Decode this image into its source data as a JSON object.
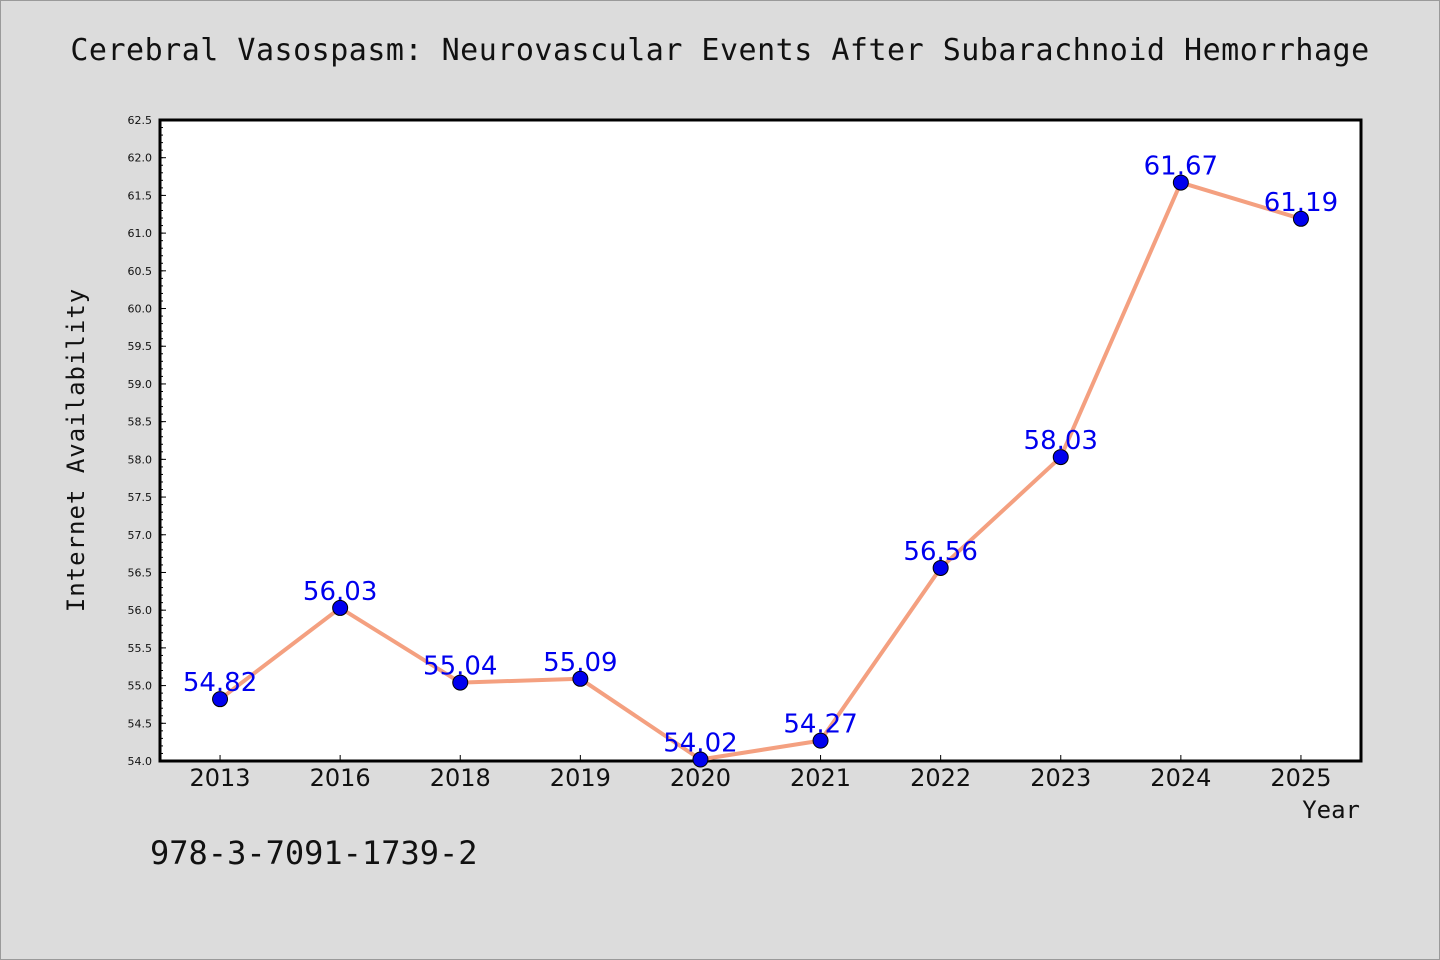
{
  "chart_data": {
    "type": "line",
    "title": "Cerebral Vasospasm: Neurovascular Events After Subarachnoid Hemorrhage",
    "xlabel": "Year",
    "ylabel": "Internet Availability",
    "categories": [
      "2013",
      "2016",
      "2018",
      "2019",
      "2020",
      "2021",
      "2022",
      "2023",
      "2024",
      "2025"
    ],
    "series": [
      {
        "values": [
          54.82,
          56.03,
          55.04,
          55.09,
          54.02,
          54.27,
          56.56,
          58.03,
          61.67,
          61.19
        ],
        "data_labels": [
          "54.82",
          "56.03",
          "55.04",
          "55.09",
          "54.02",
          "54.27",
          "56.56",
          "58.03",
          "61.67",
          "61.19"
        ]
      }
    ],
    "ylim": [
      54.0,
      62.5
    ],
    "yticks": [
      "54.0",
      "54.5",
      "55.0",
      "55.5",
      "56.0",
      "56.5",
      "57.0",
      "57.5",
      "58.0",
      "58.5",
      "59.0",
      "59.5",
      "60.0",
      "60.5",
      "61.0",
      "61.5",
      "62.0",
      "62.5"
    ],
    "grid": false,
    "line_color": "#f4a080",
    "marker_color": "#0000ee",
    "label_color": "#0000ee"
  },
  "annotation": "978-3-7091-1739-2"
}
